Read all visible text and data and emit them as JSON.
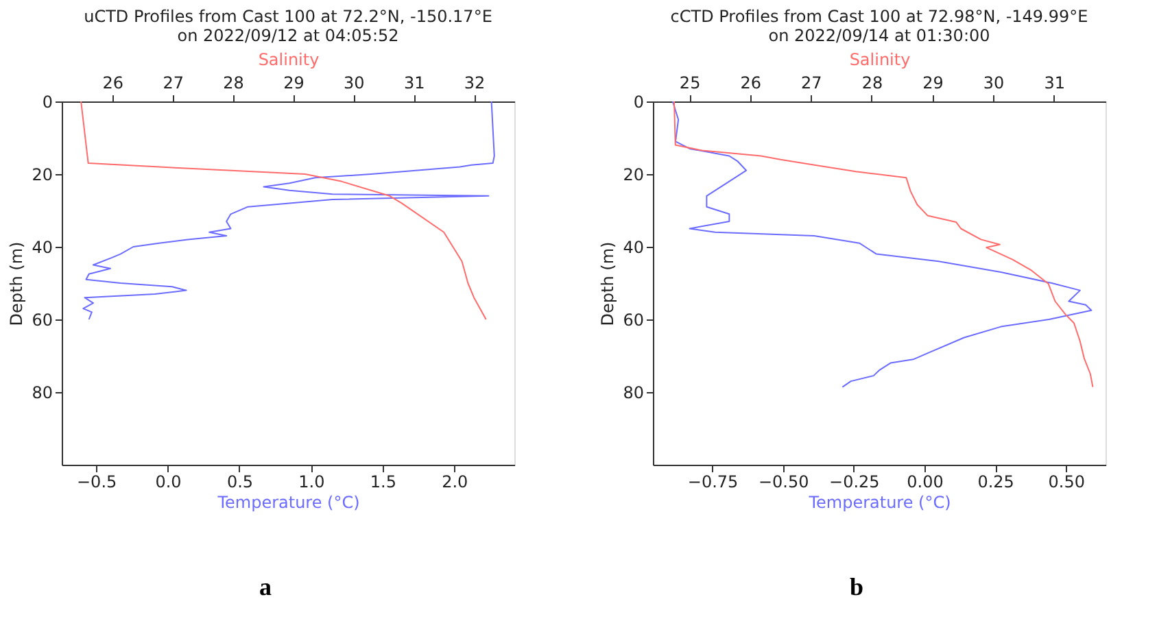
{
  "chart_data": [
    {
      "type": "line",
      "title": [
        "uCTD Profiles from Cast 100 at 72.2°N, -150.17°E",
        "on 2022/09/12 at 04:05:52"
      ],
      "xlabel": "Temperature (°C)",
      "x2label": "Salinity",
      "ylabel": "Depth (m)",
      "annotations": [
        "a"
      ],
      "xlim": [
        -0.74,
        2.42
      ],
      "xticks": [
        {
          "value": -0.5,
          "label": "−0.5"
        },
        {
          "value": 0,
          "label": "0.0"
        },
        0.5,
        {
          "value": 1,
          "label": "1.0"
        },
        1.5,
        {
          "value": 2,
          "label": "2.0"
        }
      ],
      "x2lim": [
        25.16,
        32.67
      ],
      "x2ticks": [
        26,
        27,
        28,
        29,
        30,
        31,
        32
      ],
      "ylim": [
        100,
        0
      ],
      "yticks": [
        0,
        20,
        40,
        60,
        80
      ],
      "grid": false,
      "series": [
        {
          "color": "#6b6bff",
          "x": [
            2.26,
            2.28,
            2.27,
            2.12,
            2.04,
            1.73,
            1.42,
            1.03,
            0.85,
            0.67,
            0.85,
            1.15,
            2.24,
            1.15,
            0.85,
            0.56,
            0.44,
            0.41,
            0.44,
            0.29,
            0.41,
            0.14,
            -0.06,
            -0.24,
            -0.33,
            -0.39,
            -0.52,
            -0.4,
            -0.55,
            -0.57,
            -0.33,
            0.03,
            0.13,
            -0.09,
            -0.58,
            -0.52,
            -0.59,
            -0.53,
            -0.55
          ],
          "values": [
            0,
            15,
            17,
            17.5,
            18,
            19,
            20,
            21,
            22.5,
            23.5,
            24.5,
            25.5,
            26,
            27,
            28,
            29,
            31,
            33,
            35,
            36,
            37,
            38,
            39,
            40,
            42,
            43,
            45,
            46,
            47.5,
            49,
            50,
            51,
            52,
            53,
            54,
            55.5,
            57,
            58,
            60
          ]
        },
        {
          "color": "#ff6b6b",
          "axis": "x2",
          "x": [
            25.48,
            25.6,
            27.1,
            29.2,
            29.8,
            30.6,
            30.8,
            31.5,
            31.8,
            31.9,
            32.0,
            32.2
          ],
          "values": [
            0,
            17,
            18.3,
            20,
            22,
            26,
            28,
            36,
            44,
            50,
            54,
            60
          ]
        }
      ]
    },
    {
      "type": "line",
      "title": [
        "cCTD Profiles from Cast 100 at 72.98°N, -149.99°E",
        "on 2022/09/14 at 01:30:00"
      ],
      "xlabel": "Temperature (°C)",
      "x2label": "Salinity",
      "ylabel": "Depth (m)",
      "annotations": [
        "b"
      ],
      "xlim": [
        -0.96,
        0.64
      ],
      "xticks": [
        {
          "value": -0.75,
          "label": "−0.75"
        },
        {
          "value": -0.5,
          "label": "−0.50"
        },
        {
          "value": -0.25,
          "label": "−0.25"
        },
        {
          "value": 0,
          "label": "0.00"
        },
        {
          "value": 0.25,
          "label": "0.25"
        },
        {
          "value": 0.5,
          "label": "0.50"
        }
      ],
      "x2lim": [
        24.4,
        31.85
      ],
      "x2ticks": [
        25,
        26,
        27,
        28,
        29,
        30,
        31
      ],
      "ylim": [
        100,
        0
      ],
      "yticks": [
        0,
        20,
        40,
        60,
        80
      ],
      "grid": false,
      "series": [
        {
          "color": "#6b6bff",
          "x": [
            -0.89,
            -0.87,
            -0.88,
            -0.83,
            -0.69,
            -0.66,
            -0.63,
            -0.69,
            -0.77,
            -0.77,
            -0.69,
            -0.69,
            -0.83,
            -0.74,
            -0.39,
            -0.23,
            -0.21,
            -0.17,
            0.05,
            0.27,
            0.45,
            0.55,
            0.51,
            0.57,
            0.59,
            0.44,
            0.27,
            0.14,
            0.02,
            -0.04,
            -0.12,
            -0.16,
            -0.18,
            -0.26,
            -0.29
          ],
          "values": [
            0,
            5,
            11,
            13,
            15,
            16.5,
            19,
            22,
            26,
            29,
            31,
            33,
            35,
            36,
            37,
            39,
            40,
            42,
            44,
            47,
            50,
            52,
            55,
            56,
            57.5,
            60,
            62,
            65,
            69,
            71,
            72,
            74,
            75.5,
            77,
            78.6
          ]
        },
        {
          "color": "#ff6b6b",
          "axis": "x2",
          "x": [
            24.75,
            24.77,
            25.21,
            26.18,
            26.5,
            27.06,
            27.74,
            28.09,
            28.57,
            28.64,
            28.75,
            28.92,
            29.39,
            29.47,
            29.8,
            30.11,
            29.89,
            30.32,
            30.63,
            30.91,
            31.02,
            31.19,
            31.33,
            31.43,
            31.5,
            31.6,
            31.64
          ],
          "values": [
            0,
            12,
            13.5,
            15,
            16,
            17.5,
            19.3,
            20,
            21,
            24.7,
            28.4,
            31.4,
            33.2,
            35,
            38,
            39.4,
            40.2,
            43.5,
            46.5,
            50.2,
            55,
            58.6,
            61,
            66,
            70.8,
            75,
            78.6
          ]
        }
      ]
    }
  ]
}
